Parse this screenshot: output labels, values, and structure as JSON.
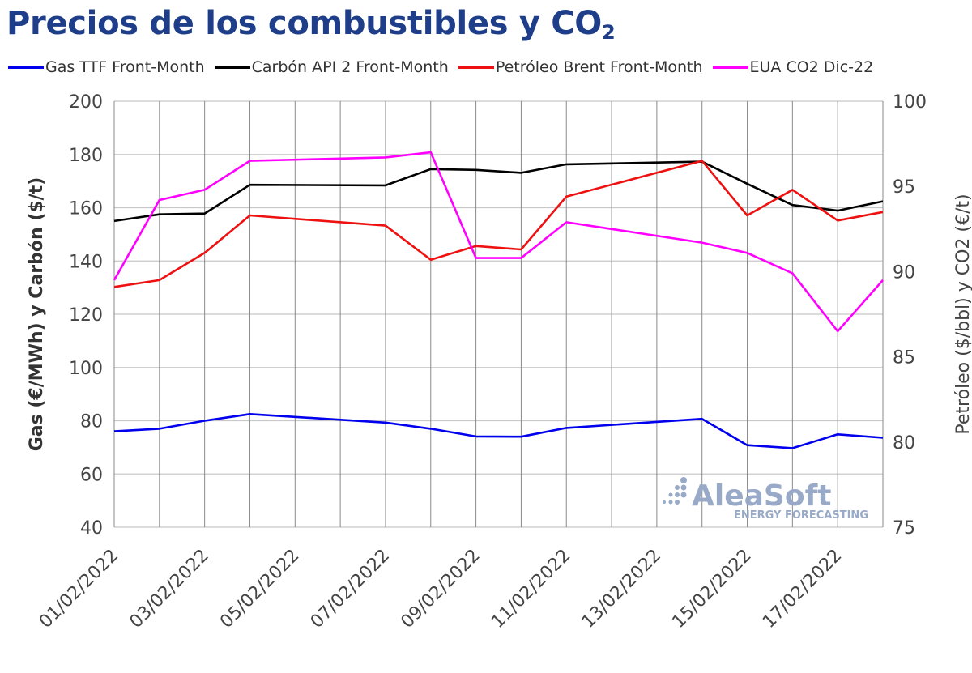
{
  "title": {
    "main": "Precios de los combustibles y CO",
    "sub": "2"
  },
  "colors": {
    "gas": "#0000ee",
    "carbon": "#000000",
    "brent": "#ee1111",
    "co2": "#ff00ff",
    "title": "#1f3e8a",
    "grid": "#c8c8c8"
  },
  "watermark": {
    "brand": "AleaSoft",
    "tagline": "ENERGY FORECASTING"
  },
  "chart_data": {
    "type": "line",
    "x": [
      "01/02/2022",
      "02/02/2022",
      "03/02/2022",
      "04/02/2022",
      "07/02/2022",
      "08/02/2022",
      "09/02/2022",
      "10/02/2022",
      "11/02/2022",
      "14/02/2022",
      "15/02/2022",
      "16/02/2022",
      "17/02/2022",
      "18/02/2022"
    ],
    "x_axis_range": [
      "01/02/2022",
      "18/02/2022"
    ],
    "x_tick_labels": [
      "01/02/2022",
      "03/02/2022",
      "05/02/2022",
      "07/02/2022",
      "09/02/2022",
      "11/02/2022",
      "13/02/2022",
      "15/02/2022",
      "17/02/2022"
    ],
    "ylabel_left": "Gas (€/MWh) y Carbón ($/t)",
    "ylabel_right": "Petróleo ($/bbl) y CO2 (€/t)",
    "ylim_left": [
      40,
      200
    ],
    "ylim_right": [
      75,
      100
    ],
    "yticks_left": [
      40,
      60,
      80,
      100,
      120,
      140,
      160,
      180,
      200
    ],
    "yticks_right": [
      75,
      80,
      85,
      90,
      95,
      100
    ],
    "grid": true,
    "legend_position": "top",
    "series": [
      {
        "name": "Gas TTF Front-Month",
        "axis": "left",
        "color_key": "gas",
        "values": [
          76.0,
          77.0,
          80.0,
          82.5,
          79.3,
          77.0,
          74.1,
          74.0,
          77.3,
          80.7,
          70.8,
          69.7,
          74.9,
          73.6
        ]
      },
      {
        "name": "Carbón API 2 Front-Month",
        "axis": "left",
        "color_key": "carbon",
        "values": [
          155.0,
          157.5,
          157.8,
          168.6,
          168.4,
          174.5,
          174.2,
          173.1,
          176.3,
          177.3,
          169.0,
          161.0,
          158.9,
          162.4
        ]
      },
      {
        "name": "Petróleo Brent Front-Month",
        "axis": "right",
        "color_key": "brent",
        "values": [
          89.1,
          89.5,
          91.1,
          93.3,
          92.7,
          90.7,
          91.5,
          91.3,
          94.4,
          96.5,
          93.3,
          94.8,
          93.0,
          93.5
        ]
      },
      {
        "name": "EUA CO2 Dic-22",
        "axis": "right",
        "color_key": "co2",
        "values": [
          89.5,
          94.2,
          94.8,
          96.5,
          96.7,
          97.0,
          90.8,
          90.8,
          92.9,
          91.7,
          91.1,
          89.9,
          86.5,
          89.5
        ]
      }
    ]
  }
}
